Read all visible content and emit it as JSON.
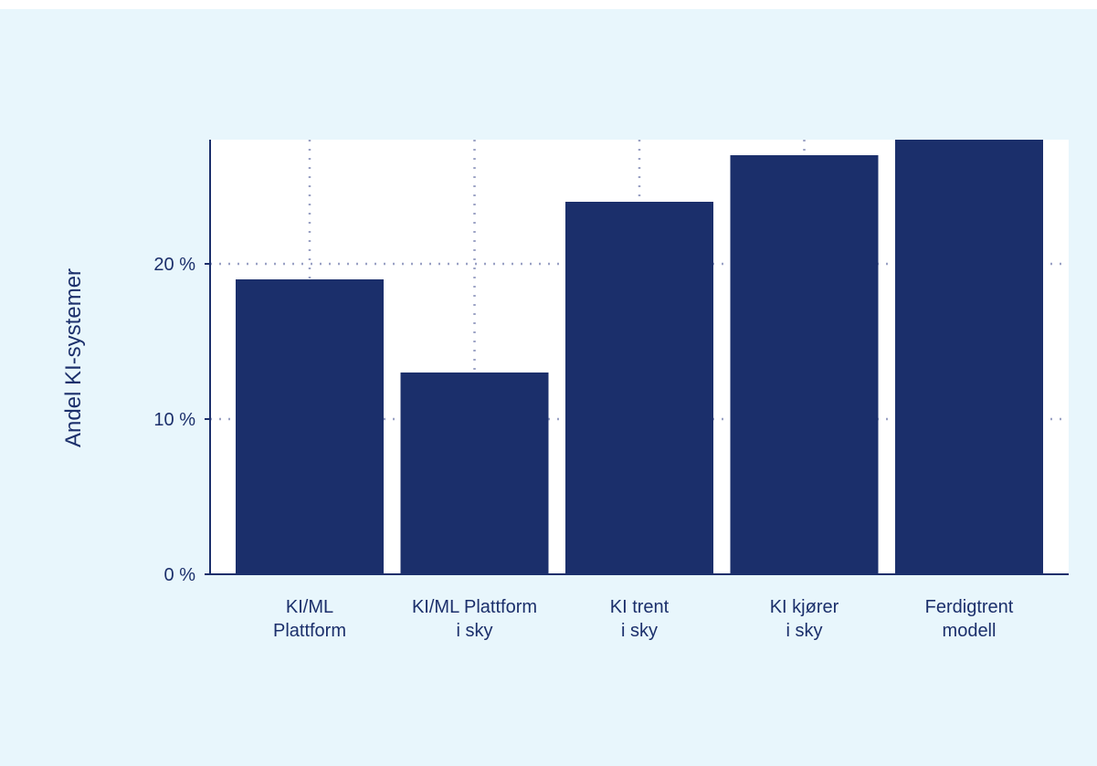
{
  "chart_data": {
    "type": "bar",
    "title": "",
    "xlabel": "",
    "ylabel": "Andel KI-systemer",
    "categories": [
      [
        "KI/ML",
        "Plattform"
      ],
      [
        "KI/ML Plattform",
        "i sky"
      ],
      [
        "KI trent",
        "i sky"
      ],
      [
        "KI kjører",
        "i sky"
      ],
      [
        "Ferdigtrent",
        "modell"
      ]
    ],
    "values": [
      19,
      13,
      24,
      27,
      28
    ],
    "ylim": [
      0,
      28
    ],
    "yticks": [
      0,
      10,
      20
    ],
    "ytick_labels": [
      "0 %",
      "10 %",
      "20 %"
    ],
    "grid": true,
    "grid_style": "dotted",
    "legend": "none",
    "colors": {
      "bar": "#1b2f6b",
      "plot_background": "#ffffff",
      "figure_background": "#e8f6fc",
      "grid": "#9aa1c4",
      "text": "#1b2f6b"
    }
  }
}
